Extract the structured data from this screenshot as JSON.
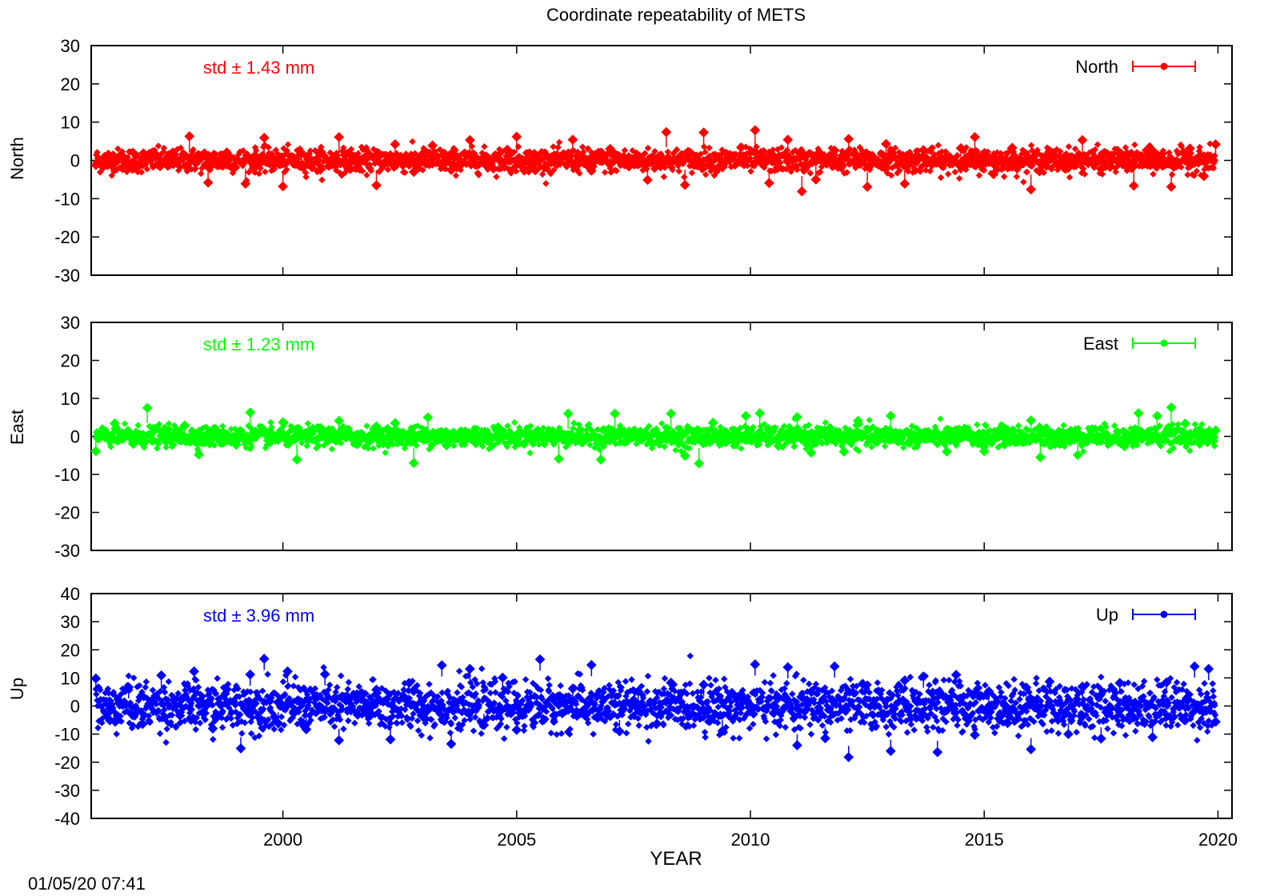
{
  "chart_data": {
    "type": "scatter",
    "title": "Coordinate repeatability of METS",
    "xlabel": "YEAR",
    "xlim": [
      1995.9,
      2020.3
    ],
    "xticks": [
      2000,
      2005,
      2010,
      2015,
      2020
    ],
    "timestamp": "01/05/20 07:41",
    "panels": [
      {
        "name": "North",
        "ylabel": "North",
        "color": "#ff0000",
        "ylim": [
          -30,
          30
        ],
        "yticks": [
          -30,
          -20,
          -10,
          0,
          10,
          20,
          30
        ],
        "std_label": "std ± 1.43 mm",
        "legend": "North",
        "std": 1.43,
        "points": [
          [
            1996.0,
            -1.2
          ],
          [
            1996.4,
            0.8
          ],
          [
            1996.8,
            -2.1
          ],
          [
            1997.2,
            1.5
          ],
          [
            1997.6,
            -0.9
          ],
          [
            1998.0,
            6.3
          ],
          [
            1998.4,
            -5.8
          ],
          [
            1998.8,
            2.1
          ],
          [
            1999.2,
            -6.1
          ],
          [
            1999.6,
            5.9
          ],
          [
            2000.0,
            -6.8
          ],
          [
            2000.4,
            1.9
          ],
          [
            2000.8,
            -2.4
          ],
          [
            2001.2,
            6.1
          ],
          [
            2001.6,
            -1.8
          ],
          [
            2002.0,
            -6.5
          ],
          [
            2002.4,
            4.2
          ],
          [
            2002.8,
            -3.0
          ],
          [
            2003.2,
            3.9
          ],
          [
            2003.6,
            -2.5
          ],
          [
            2004.0,
            5.3
          ],
          [
            2004.4,
            -1.5
          ],
          [
            2004.8,
            2.8
          ],
          [
            2005.0,
            6.2
          ],
          [
            2005.4,
            -2.6
          ],
          [
            2005.8,
            1.1
          ],
          [
            2006.2,
            5.4
          ],
          [
            2006.6,
            -2.7
          ],
          [
            2007.0,
            3.0
          ],
          [
            2007.4,
            -1.6
          ],
          [
            2007.8,
            -5.1
          ],
          [
            2008.2,
            7.4
          ],
          [
            2008.6,
            -6.4
          ],
          [
            2009.0,
            7.3
          ],
          [
            2009.4,
            -1.8
          ],
          [
            2009.8,
            3.4
          ],
          [
            2010.1,
            7.9
          ],
          [
            2010.4,
            -5.9
          ],
          [
            2010.8,
            5.4
          ],
          [
            2011.1,
            -8.1
          ],
          [
            2011.4,
            -5.0
          ],
          [
            2011.8,
            2.6
          ],
          [
            2012.1,
            5.6
          ],
          [
            2012.5,
            -6.9
          ],
          [
            2012.9,
            4.3
          ],
          [
            2013.3,
            -6.1
          ],
          [
            2013.7,
            2.7
          ],
          [
            2014.1,
            -1.4
          ],
          [
            2014.5,
            3.2
          ],
          [
            2014.8,
            6.1
          ],
          [
            2015.2,
            -3.6
          ],
          [
            2015.6,
            3.3
          ],
          [
            2016.0,
            -7.6
          ],
          [
            2016.4,
            2.4
          ],
          [
            2016.8,
            -1.9
          ],
          [
            2017.1,
            5.3
          ],
          [
            2017.5,
            -2.2
          ],
          [
            2017.9,
            1.9
          ],
          [
            2018.2,
            -6.6
          ],
          [
            2018.6,
            2.6
          ],
          [
            2019.0,
            -6.9
          ],
          [
            2019.4,
            3.1
          ],
          [
            2019.7,
            -4.1
          ],
          [
            2019.95,
            4.2
          ]
        ]
      },
      {
        "name": "East",
        "ylabel": "East",
        "color": "#00ff00",
        "ylim": [
          -30,
          30
        ],
        "yticks": [
          -30,
          -20,
          -10,
          0,
          10,
          20,
          30
        ],
        "std_label": "std ± 1.23 mm",
        "legend": "East",
        "std": 1.23,
        "points": [
          [
            1996.0,
            -3.9
          ],
          [
            1996.4,
            3.4
          ],
          [
            1996.8,
            -2.0
          ],
          [
            1997.1,
            7.5
          ],
          [
            1997.5,
            -1.4
          ],
          [
            1997.9,
            2.9
          ],
          [
            1998.2,
            -4.8
          ],
          [
            1998.6,
            1.1
          ],
          [
            1999.0,
            -2.2
          ],
          [
            1999.3,
            6.3
          ],
          [
            1999.7,
            -0.9
          ],
          [
            2000.0,
            3.7
          ],
          [
            2000.3,
            -6.1
          ],
          [
            2000.8,
            1.6
          ],
          [
            2001.2,
            4.1
          ],
          [
            2001.6,
            -2.0
          ],
          [
            2002.0,
            2.6
          ],
          [
            2002.4,
            3.5
          ],
          [
            2002.8,
            -7.0
          ],
          [
            2003.1,
            5.0
          ],
          [
            2003.5,
            -2.4
          ],
          [
            2003.9,
            1.3
          ],
          [
            2004.2,
            -0.9
          ],
          [
            2004.6,
            2.4
          ],
          [
            2005.0,
            -1.8
          ],
          [
            2005.5,
            1.0
          ],
          [
            2005.9,
            -5.9
          ],
          [
            2006.1,
            6.0
          ],
          [
            2006.4,
            -1.6
          ],
          [
            2006.8,
            -6.1
          ],
          [
            2007.1,
            6.0
          ],
          [
            2007.5,
            1.4
          ],
          [
            2007.9,
            -1.9
          ],
          [
            2008.3,
            6.0
          ],
          [
            2008.6,
            -5.1
          ],
          [
            2008.9,
            -7.1
          ],
          [
            2009.2,
            3.6
          ],
          [
            2009.6,
            -0.7
          ],
          [
            2009.9,
            5.4
          ],
          [
            2010.2,
            6.1
          ],
          [
            2010.6,
            -2.5
          ],
          [
            2011.0,
            5.1
          ],
          [
            2011.3,
            -4.3
          ],
          [
            2011.7,
            2.2
          ],
          [
            2012.0,
            -4.0
          ],
          [
            2012.3,
            4.1
          ],
          [
            2012.7,
            -1.5
          ],
          [
            2013.0,
            5.4
          ],
          [
            2013.4,
            -1.7
          ],
          [
            2013.8,
            1.2
          ],
          [
            2014.2,
            -4.0
          ],
          [
            2014.6,
            1.6
          ],
          [
            2015.0,
            -3.9
          ],
          [
            2015.4,
            1.3
          ],
          [
            2015.8,
            -1.4
          ],
          [
            2016.0,
            4.2
          ],
          [
            2016.2,
            -5.5
          ],
          [
            2016.6,
            1.3
          ],
          [
            2017.0,
            -4.9
          ],
          [
            2017.3,
            1.9
          ],
          [
            2017.7,
            -0.8
          ],
          [
            2018.0,
            -2.6
          ],
          [
            2018.3,
            6.1
          ],
          [
            2018.7,
            5.4
          ],
          [
            2019.0,
            7.6
          ],
          [
            2019.3,
            3.4
          ],
          [
            2019.6,
            -1.8
          ],
          [
            2019.95,
            1.6
          ]
        ]
      },
      {
        "name": "Up",
        "ylabel": "Up",
        "color": "#0000ff",
        "ylim": [
          -40,
          40
        ],
        "yticks": [
          -40,
          -30,
          -20,
          -10,
          0,
          10,
          20,
          30,
          40
        ],
        "std_label": "std ± 3.96 mm",
        "legend": "Up",
        "std": 3.96,
        "points": [
          [
            1996.0,
            9.8
          ],
          [
            1996.3,
            -5.1
          ],
          [
            1996.7,
            6.7
          ],
          [
            1997.0,
            -6.4
          ],
          [
            1997.4,
            10.9
          ],
          [
            1997.8,
            -3.4
          ],
          [
            1998.1,
            12.3
          ],
          [
            1998.5,
            -8.0
          ],
          [
            1998.8,
            5.9
          ],
          [
            1999.1,
            -15.1
          ],
          [
            1999.3,
            11.2
          ],
          [
            1999.6,
            16.8
          ],
          [
            1999.9,
            -6.2
          ],
          [
            2000.1,
            12.3
          ],
          [
            2000.5,
            -8.3
          ],
          [
            2000.9,
            11.3
          ],
          [
            2001.2,
            -12.2
          ],
          [
            2001.6,
            -3.1
          ],
          [
            2002.0,
            5.8
          ],
          [
            2002.3,
            -11.9
          ],
          [
            2002.7,
            8.2
          ],
          [
            2003.0,
            -3.9
          ],
          [
            2003.4,
            14.5
          ],
          [
            2003.6,
            -13.5
          ],
          [
            2004.0,
            13.2
          ],
          [
            2004.3,
            -6.8
          ],
          [
            2004.7,
            10.1
          ],
          [
            2005.0,
            -8.5
          ],
          [
            2005.5,
            16.6
          ],
          [
            2005.8,
            -3.4
          ],
          [
            2006.2,
            6.2
          ],
          [
            2006.6,
            14.6
          ],
          [
            2006.9,
            -2.6
          ],
          [
            2007.2,
            -9.0
          ],
          [
            2007.6,
            5.2
          ],
          [
            2008.0,
            -6.3
          ],
          [
            2008.3,
            8.3
          ],
          [
            2008.7,
            -3.4
          ],
          [
            2009.0,
            7.6
          ],
          [
            2009.4,
            -8.9
          ],
          [
            2009.8,
            4.1
          ],
          [
            2010.1,
            14.8
          ],
          [
            2010.5,
            -2.5
          ],
          [
            2010.8,
            13.8
          ],
          [
            2011.0,
            -14.0
          ],
          [
            2011.3,
            5.1
          ],
          [
            2011.6,
            -11.5
          ],
          [
            2011.8,
            14.1
          ],
          [
            2012.1,
            -18.2
          ],
          [
            2012.4,
            7.9
          ],
          [
            2012.8,
            -2.9
          ],
          [
            2013.0,
            -16.0
          ],
          [
            2013.3,
            9.1
          ],
          [
            2013.7,
            10.5
          ],
          [
            2014.0,
            -16.4
          ],
          [
            2014.4,
            11.1
          ],
          [
            2014.8,
            -10.3
          ],
          [
            2015.1,
            5.2
          ],
          [
            2015.5,
            -6.1
          ],
          [
            2015.9,
            6.6
          ],
          [
            2016.0,
            -15.4
          ],
          [
            2016.4,
            8.7
          ],
          [
            2016.8,
            -10.0
          ],
          [
            2017.1,
            6.9
          ],
          [
            2017.5,
            -11.6
          ],
          [
            2017.9,
            8.2
          ],
          [
            2018.2,
            -4.1
          ],
          [
            2018.6,
            -11.1
          ],
          [
            2018.9,
            8.4
          ],
          [
            2019.3,
            -5.1
          ],
          [
            2019.5,
            14.1
          ],
          [
            2019.8,
            13.2
          ],
          [
            2019.95,
            -5.6
          ]
        ]
      }
    ]
  }
}
